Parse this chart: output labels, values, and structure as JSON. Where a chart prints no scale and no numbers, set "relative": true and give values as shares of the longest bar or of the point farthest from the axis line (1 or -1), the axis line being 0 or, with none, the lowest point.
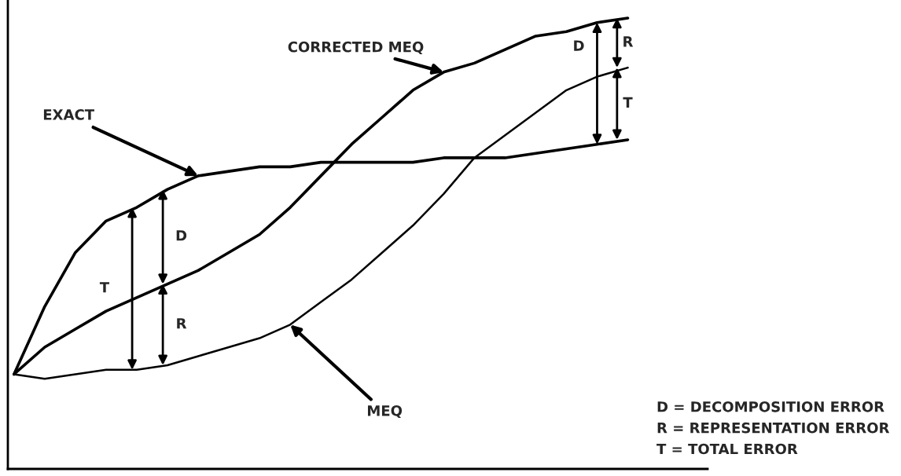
{
  "chart_data": {
    "type": "line",
    "relative": true,
    "categories": [
      null,
      null,
      null,
      null,
      null,
      null,
      null,
      null,
      null,
      null,
      null,
      null,
      null,
      null,
      null,
      null,
      null,
      null,
      null,
      null,
      null
    ],
    "series": [
      {
        "name": "EXACT",
        "color": "#000000",
        "values": [
          0.21,
          0.36,
          0.48,
          0.55,
          0.58,
          0.62,
          0.65,
          0.66,
          0.67,
          0.67,
          0.68,
          0.68,
          0.68,
          0.68,
          0.69,
          0.69,
          0.69,
          0.7,
          0.71,
          0.72,
          0.73
        ]
      },
      {
        "name": "CORRECTED MEQ",
        "color": "#000000",
        "values": [
          0.21,
          0.27,
          0.31,
          0.35,
          0.38,
          0.41,
          0.44,
          0.48,
          0.52,
          0.58,
          0.65,
          0.72,
          0.78,
          0.84,
          0.88,
          0.9,
          0.93,
          0.96,
          0.97,
          0.99,
          1.0
        ]
      },
      {
        "name": "MEQ",
        "color": "#000000",
        "values": [
          0.21,
          0.2,
          0.21,
          0.22,
          0.22,
          0.23,
          0.25,
          0.27,
          0.29,
          0.32,
          0.37,
          0.42,
          0.48,
          0.54,
          0.61,
          0.69,
          0.74,
          0.79,
          0.84,
          0.87,
          0.89
        ]
      }
    ],
    "annotations": [
      "T",
      "D",
      "R",
      "D",
      "R",
      "T",
      "D = DECOMPOSITION ERROR",
      "R = REPRESENTATION ERROR",
      "T = TOTAL ERROR"
    ],
    "marker": "none",
    "line_style": "solid"
  }
}
